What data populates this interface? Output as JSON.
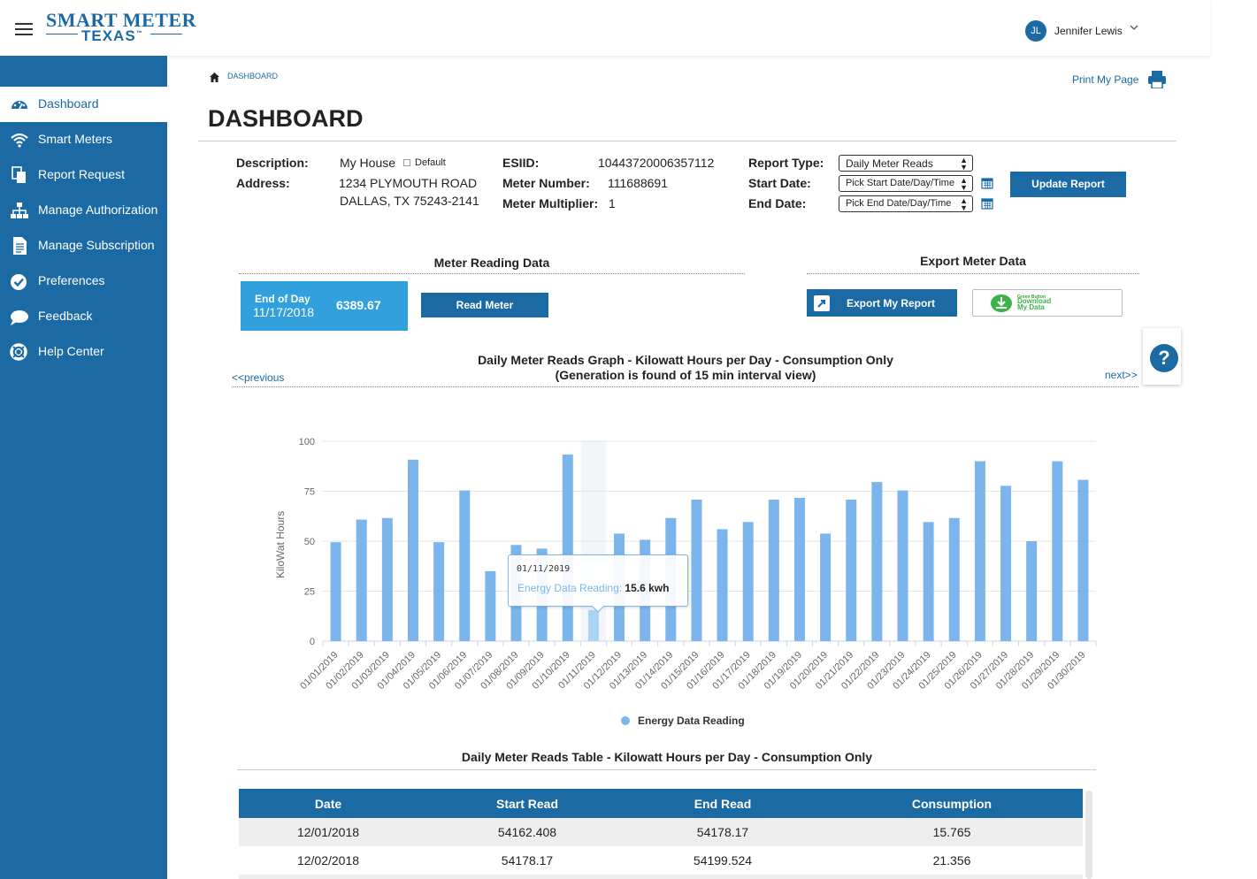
{
  "header": {
    "logo_top": "SMART METER",
    "logo_bottom": "TEXAS",
    "logo_tm": "™",
    "user_initials": "JL",
    "user_name": "Jennifer Lewis"
  },
  "sidebar": {
    "items": [
      {
        "label": "Dashboard",
        "icon": "dashboard-gauge-icon",
        "active": true
      },
      {
        "label": "Smart Meters",
        "icon": "wifi-icon"
      },
      {
        "label": "Report Request",
        "icon": "documents-icon"
      },
      {
        "label": "Manage Authorization",
        "icon": "sitemap-icon"
      },
      {
        "label": "Manage Subscription",
        "icon": "document-lines-icon"
      },
      {
        "label": "Preferences",
        "icon": "check-circle-icon"
      },
      {
        "label": "Feedback",
        "icon": "speech-bubble-icon"
      },
      {
        "label": "Help Center",
        "icon": "life-ring-icon"
      }
    ]
  },
  "breadcrumb": "DASHBOARD",
  "page_title": "DASHBOARD",
  "print_label": "Print My Page",
  "details": {
    "description_label": "Description:",
    "description_value": "My House",
    "default_label": "Default",
    "address_label": "Address:",
    "address_line1": "1234 PLYMOUTH ROAD",
    "address_line2": "DALLAS, TX 75243-2141",
    "esiid_label": "ESIID:",
    "esiid_value": "10443720006357112",
    "meter_number_label": "Meter Number:",
    "meter_number_value": "111688691",
    "meter_multiplier_label": "Meter Multiplier:",
    "meter_multiplier_value": "1",
    "report_type_label": "Report Type:",
    "report_type_value": "Daily Meter Reads",
    "start_date_label": "Start Date:",
    "start_date_placeholder": "Pick Start Date/Day/Time",
    "end_date_label": "End Date:",
    "end_date_placeholder": "Pick End Date/Day/Time",
    "update_button": "Update Report"
  },
  "meter_reading": {
    "title": "Meter Reading Data",
    "end_of_day_label": "End of Day",
    "end_of_day_date": "11/17/2018",
    "reading_value": "6389.67",
    "read_button": "Read Meter"
  },
  "export": {
    "title": "Export Meter Data",
    "export_button": "Export My Report",
    "green_button_small": "Green Button",
    "green_button_line1": "Download",
    "green_button_line2": "My Data"
  },
  "help_symbol": "?",
  "chart_nav": {
    "previous": "<<previous",
    "next": "next>>"
  },
  "chart_data": {
    "type": "bar",
    "title": "Daily Meter Reads Graph - Kilowatt Hours per Day - Consumption Only",
    "subtitle": "(Generation is found of 15 min interval view)",
    "ylabel": "KiloWat Hours",
    "ylim": [
      0,
      100
    ],
    "yticks": [
      0,
      25,
      50,
      75,
      100
    ],
    "grid": true,
    "legend": "bottom-center",
    "categories": [
      "01/01/2019",
      "01/02/2019",
      "01/03/2019",
      "01/04/2019",
      "01/05/2019",
      "01/06/2019",
      "01/07/2019",
      "01/08/2019",
      "01/09/2019",
      "01/10/2019",
      "01/11/2019",
      "01/12/2019",
      "01/13/2019",
      "01/14/2019",
      "01/15/2019",
      "01/16/2019",
      "01/17/2019",
      "01/18/2019",
      "01/19/2019",
      "01/20/2019",
      "01/21/2019",
      "01/22/2019",
      "01/23/2019",
      "01/24/2019",
      "01/25/2019",
      "01/26/2019",
      "01/27/2019",
      "01/28/2019",
      "01/29/2019",
      "01/30/2019"
    ],
    "series": [
      {
        "name": "Energy Data Reading",
        "values": [
          49.5,
          60.8,
          61.6,
          90.8,
          49.5,
          75.4,
          35.0,
          48.1,
          46.3,
          93.4,
          15.6,
          53.8,
          50.7,
          61.6,
          70.8,
          56.0,
          59.6,
          70.8,
          71.7,
          53.8,
          70.8,
          79.6,
          75.4,
          59.6,
          61.6,
          90.0,
          77.7,
          50.0,
          90.0,
          80.7
        ]
      }
    ],
    "colors": {
      "bar": "#7cb5ec",
      "highlight": "#a9d4f5"
    },
    "tooltip": {
      "date": "01/11/2019",
      "series_label": "Energy Data Reading:",
      "value": "15.6 kwh"
    },
    "highlight_index": 10
  },
  "table": {
    "title": "Daily Meter Reads Table - Kilowatt Hours per Day - Consumption Only",
    "columns": [
      "Date",
      "Start Read",
      "End Read",
      "Consumption"
    ],
    "rows": [
      [
        "12/01/2018",
        "54162.408",
        "54178.17",
        "15.765"
      ],
      [
        "12/02/2018",
        "54178.17",
        "54199.524",
        "21.356"
      ]
    ]
  }
}
